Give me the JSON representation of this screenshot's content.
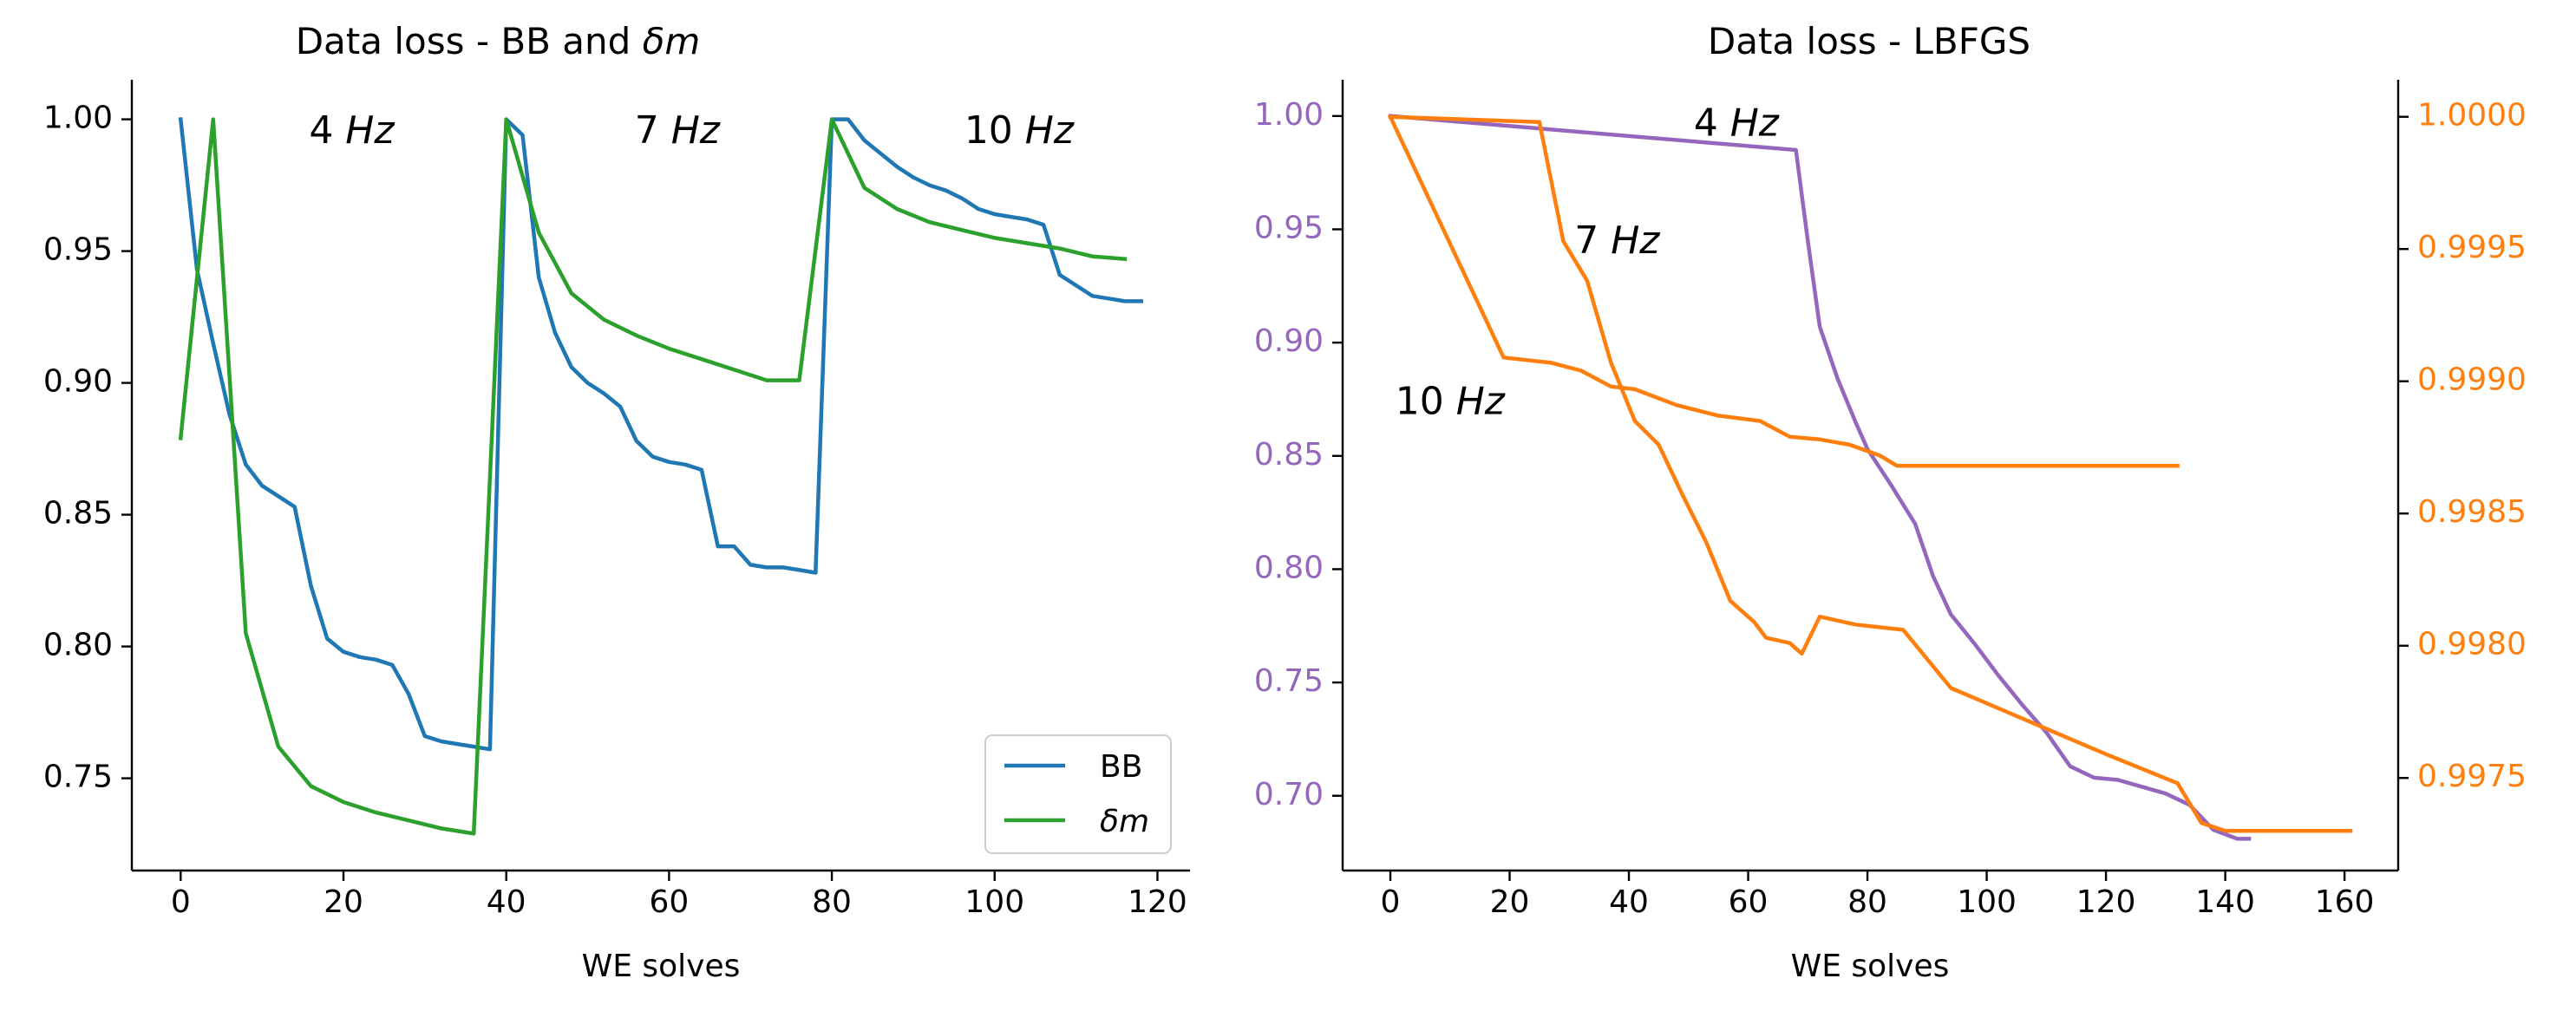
{
  "chart_data": [
    {
      "type": "line",
      "title": {
        "prefix": "Data loss - BB and ",
        "symbol": "δm"
      },
      "xlabel": "WE solves",
      "ylabel": "",
      "xlim": [
        -6,
        124
      ],
      "ylim": [
        0.715,
        1.015
      ],
      "xticks": [
        0,
        20,
        40,
        60,
        80,
        100,
        120
      ],
      "xtick_labels": [
        "0",
        "20",
        "40",
        "60",
        "80",
        "100",
        "120"
      ],
      "yticks": [
        0.75,
        0.8,
        0.85,
        0.9,
        0.95,
        1.0
      ],
      "ytick_labels": [
        "0.75",
        "0.80",
        "0.85",
        "0.90",
        "0.95",
        "1.00"
      ],
      "grid": false,
      "legend": "lower-right",
      "annotations": [
        {
          "num": "4",
          "unit": "Hz",
          "x": 21,
          "y": 0.995
        },
        {
          "num": "7",
          "unit": "Hz",
          "x": 61,
          "y": 0.995
        },
        {
          "num": "10",
          "unit": "Hz",
          "x": 103,
          "y": 0.995
        }
      ],
      "series": [
        {
          "name": "BB",
          "color": "#1f77b4",
          "x": [
            0,
            2,
            4,
            6,
            8,
            10,
            12,
            14,
            16,
            18,
            20,
            22,
            24,
            26,
            28,
            30,
            32,
            34,
            36,
            38,
            40,
            42,
            44,
            46,
            48,
            50,
            52,
            54,
            56,
            58,
            60,
            62,
            64,
            66,
            68,
            70,
            72,
            74,
            76,
            78,
            80,
            82,
            84,
            86,
            88,
            90,
            92,
            94,
            96,
            98,
            100,
            102,
            104,
            106,
            108,
            110,
            112,
            114,
            116,
            118
          ],
          "y": [
            1.0,
            0.943,
            0.915,
            0.888,
            0.869,
            0.861,
            0.857,
            0.853,
            0.823,
            0.803,
            0.798,
            0.796,
            0.795,
            0.793,
            0.782,
            0.766,
            0.764,
            0.763,
            0.762,
            0.761,
            1.0,
            0.994,
            0.94,
            0.919,
            0.906,
            0.9,
            0.896,
            0.891,
            0.878,
            0.872,
            0.87,
            0.869,
            0.867,
            0.838,
            0.838,
            0.831,
            0.83,
            0.83,
            0.829,
            0.828,
            1.0,
            1.0,
            0.992,
            0.987,
            0.982,
            0.978,
            0.975,
            0.973,
            0.97,
            0.966,
            0.964,
            0.963,
            0.962,
            0.96,
            0.941,
            0.937,
            0.933,
            0.932,
            0.931,
            0.931
          ]
        },
        {
          "name": "δm",
          "color": "#2ca02c",
          "x": [
            0,
            4,
            8,
            12,
            16,
            20,
            24,
            28,
            32,
            36,
            40,
            44,
            48,
            52,
            56,
            60,
            64,
            68,
            72,
            76,
            80,
            84,
            88,
            92,
            96,
            100,
            104,
            108,
            112,
            116
          ],
          "y": [
            0.879,
            1.0,
            0.805,
            0.762,
            0.747,
            0.741,
            0.737,
            0.734,
            0.731,
            0.729,
            1.0,
            0.957,
            0.934,
            0.924,
            0.918,
            0.913,
            0.909,
            0.905,
            0.901,
            0.901,
            1.0,
            0.974,
            0.966,
            0.961,
            0.958,
            0.955,
            0.953,
            0.951,
            0.948,
            0.947
          ]
        }
      ]
    },
    {
      "type": "line",
      "title": {
        "prefix": "Data loss - LBFGS",
        "symbol": ""
      },
      "xlabel": "WE solves",
      "ylabel": "",
      "xlim": [
        -8,
        169
      ],
      "ylim": [
        0.667,
        1.016
      ],
      "ylim_right": [
        0.99715,
        1.00014
      ],
      "xticks": [
        0,
        20,
        40,
        60,
        80,
        100,
        120,
        140,
        160
      ],
      "xtick_labels": [
        "0",
        "20",
        "40",
        "60",
        "80",
        "100",
        "120",
        "140",
        "160"
      ],
      "yticks": [
        0.7,
        0.75,
        0.8,
        0.85,
        0.9,
        0.95,
        1.0
      ],
      "ytick_labels": [
        "0.70",
        "0.75",
        "0.80",
        "0.85",
        "0.90",
        "0.95",
        "1.00"
      ],
      "yticks_right": [
        0.9975,
        0.998,
        0.9985,
        0.999,
        0.9995,
        1.0
      ],
      "ytick_labels_right": [
        "0.9975",
        "0.9980",
        "0.9985",
        "0.9990",
        "0.9995",
        "1.0000"
      ],
      "left_axis_color": "#9467bd",
      "right_axis_color": "#ff7f0e",
      "grid": false,
      "annotations": [
        {
          "num": "4",
          "unit": "Hz",
          "x": 58,
          "y": 0.996
        },
        {
          "num": "7",
          "unit": "Hz",
          "x": 38,
          "y": 0.944
        },
        {
          "num": "10",
          "unit": "Hz",
          "x": 10,
          "y": 0.873
        }
      ],
      "series": [
        {
          "name": "4 Hz",
          "axis": "left",
          "color": "#9467bd",
          "x": [
            0,
            68,
            70,
            72,
            75,
            78,
            80,
            84,
            88,
            91,
            94,
            98,
            102,
            106,
            110,
            114,
            118,
            122,
            126,
            130,
            134,
            138,
            142,
            144
          ],
          "y": [
            1.0,
            0.985,
            0.945,
            0.907,
            0.884,
            0.865,
            0.853,
            0.837,
            0.82,
            0.797,
            0.78,
            0.767,
            0.753,
            0.74,
            0.728,
            0.713,
            0.708,
            0.707,
            0.704,
            0.701,
            0.696,
            0.685,
            0.681,
            0.681
          ]
        },
        {
          "name": "7 Hz",
          "axis": "right",
          "color": "#ff7f0e",
          "x": [
            0,
            25,
            29,
            33,
            37,
            41,
            45,
            49,
            53,
            57,
            61,
            63,
            67,
            69,
            72,
            78,
            86,
            94,
            120,
            132,
            136,
            140,
            161
          ],
          "y": [
            1.0,
            0.99998,
            0.99953,
            0.99938,
            0.99907,
            0.99885,
            0.99876,
            0.99857,
            0.99839,
            0.99817,
            0.99809,
            0.99803,
            0.99801,
            0.99797,
            0.99811,
            0.99808,
            0.99806,
            0.99784,
            0.99759,
            0.99748,
            0.99733,
            0.9973,
            0.9973
          ]
        },
        {
          "name": "10 Hz",
          "axis": "right",
          "color": "#ff7f0e",
          "x": [
            0,
            19,
            27,
            32,
            37,
            41,
            48,
            55,
            62,
            67,
            72,
            77,
            82,
            85,
            100,
            120,
            132
          ],
          "y": [
            1.0,
            0.99909,
            0.99907,
            0.99904,
            0.99898,
            0.99897,
            0.99891,
            0.99887,
            0.99885,
            0.99879,
            0.99878,
            0.99876,
            0.99872,
            0.99868,
            0.99868,
            0.99868,
            0.99868
          ]
        }
      ]
    }
  ]
}
